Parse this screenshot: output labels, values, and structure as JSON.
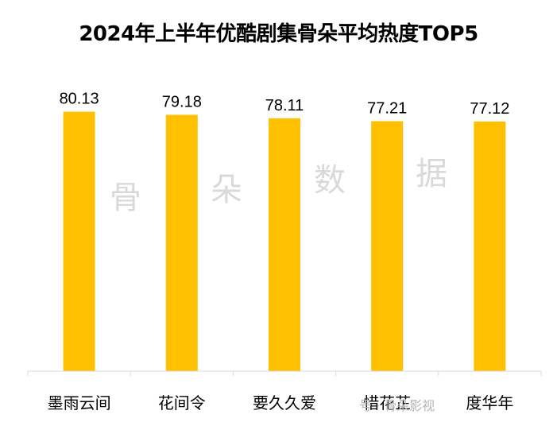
{
  "chart_data": {
    "type": "bar",
    "title": "2024年上半年优酷剧集骨朵平均热度TOP5",
    "categories": [
      "墨雨云间",
      "花间令",
      "要久久爱",
      "惜花芷",
      "度华年"
    ],
    "values": [
      80.13,
      79.18,
      78.11,
      77.21,
      77.12
    ],
    "value_labels": [
      "80.13",
      "79.18",
      "78.11",
      "77.21",
      "77.12"
    ],
    "xlabel": "",
    "ylabel": "",
    "ylim": [
      0,
      82
    ],
    "grid": false,
    "legend": "none",
    "bar_color": "#FFC000"
  },
  "watermark": {
    "chars": [
      "骨",
      "朵",
      "数",
      "据"
    ],
    "footer": "号 · 骨朵影视"
  }
}
